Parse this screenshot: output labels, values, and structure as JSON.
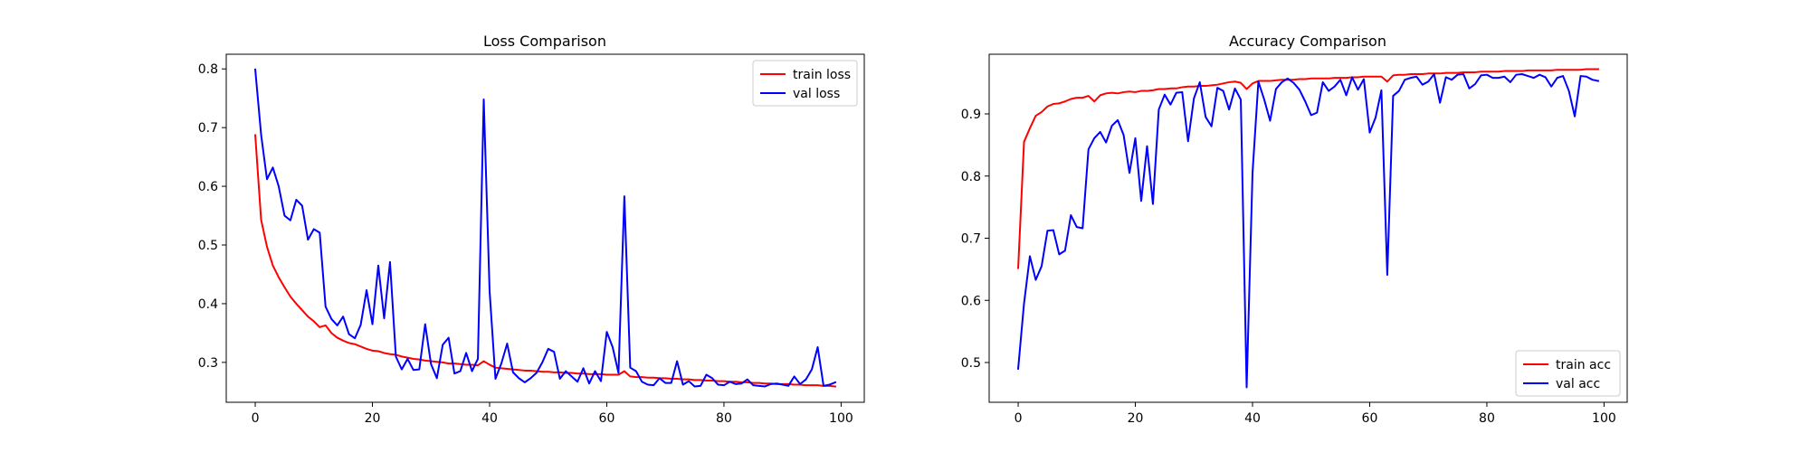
{
  "chart_data": [
    {
      "type": "line",
      "title": "Loss Comparison",
      "xlabel": "",
      "ylabel": "",
      "xlim": [
        -4.95,
        103.95
      ],
      "ylim": [
        0.232,
        0.825
      ],
      "xticks": [
        0,
        20,
        40,
        60,
        80,
        100
      ],
      "yticks": [
        0.3,
        0.4,
        0.5,
        0.6,
        0.7,
        0.8
      ],
      "legend_position": "top-right",
      "series": [
        {
          "name": "train loss",
          "color": "#ff0000",
          "x": [
            0,
            1,
            2,
            3,
            4,
            5,
            6,
            7,
            8,
            9,
            10,
            11,
            12,
            13,
            14,
            15,
            16,
            17,
            18,
            19,
            20,
            21,
            22,
            23,
            24,
            25,
            26,
            27,
            28,
            29,
            30,
            31,
            32,
            33,
            34,
            35,
            36,
            37,
            38,
            39,
            40,
            41,
            42,
            43,
            44,
            45,
            46,
            47,
            48,
            49,
            50,
            51,
            52,
            53,
            54,
            55,
            56,
            57,
            58,
            59,
            60,
            61,
            62,
            63,
            64,
            65,
            66,
            67,
            68,
            69,
            70,
            71,
            72,
            73,
            74,
            75,
            76,
            77,
            78,
            79,
            80,
            81,
            82,
            83,
            84,
            85,
            86,
            87,
            88,
            89,
            90,
            91,
            92,
            93,
            94,
            95,
            96,
            97,
            98,
            99
          ],
          "values": [
            0.687,
            0.543,
            0.497,
            0.465,
            0.445,
            0.428,
            0.412,
            0.4,
            0.389,
            0.378,
            0.37,
            0.36,
            0.363,
            0.35,
            0.342,
            0.337,
            0.333,
            0.331,
            0.327,
            0.323,
            0.32,
            0.319,
            0.316,
            0.314,
            0.313,
            0.31,
            0.308,
            0.306,
            0.305,
            0.303,
            0.302,
            0.301,
            0.3,
            0.298,
            0.298,
            0.297,
            0.296,
            0.296,
            0.295,
            0.302,
            0.296,
            0.291,
            0.29,
            0.289,
            0.288,
            0.287,
            0.286,
            0.286,
            0.285,
            0.284,
            0.284,
            0.283,
            0.283,
            0.282,
            0.282,
            0.281,
            0.281,
            0.28,
            0.28,
            0.28,
            0.279,
            0.279,
            0.279,
            0.285,
            0.276,
            0.275,
            0.275,
            0.274,
            0.274,
            0.273,
            0.273,
            0.272,
            0.272,
            0.271,
            0.271,
            0.27,
            0.27,
            0.269,
            0.269,
            0.268,
            0.268,
            0.267,
            0.267,
            0.266,
            0.266,
            0.265,
            0.265,
            0.264,
            0.264,
            0.263,
            0.263,
            0.263,
            0.262,
            0.262,
            0.261,
            0.261,
            0.261,
            0.26,
            0.26,
            0.259
          ]
        },
        {
          "name": "val loss",
          "color": "#0000ff",
          "x": [
            0,
            1,
            2,
            3,
            4,
            5,
            6,
            7,
            8,
            9,
            10,
            11,
            12,
            13,
            14,
            15,
            16,
            17,
            18,
            19,
            20,
            21,
            22,
            23,
            24,
            25,
            26,
            27,
            28,
            29,
            30,
            31,
            32,
            33,
            34,
            35,
            36,
            37,
            38,
            39,
            40,
            41,
            42,
            43,
            44,
            45,
            46,
            47,
            48,
            49,
            50,
            51,
            52,
            53,
            54,
            55,
            56,
            57,
            58,
            59,
            60,
            61,
            62,
            63,
            64,
            65,
            66,
            67,
            68,
            69,
            70,
            71,
            72,
            73,
            74,
            75,
            76,
            77,
            78,
            79,
            80,
            81,
            82,
            83,
            84,
            85,
            86,
            87,
            88,
            89,
            90,
            91,
            92,
            93,
            94,
            95,
            96,
            97,
            98,
            99
          ],
          "values": [
            0.799,
            0.688,
            0.612,
            0.632,
            0.6,
            0.55,
            0.542,
            0.577,
            0.567,
            0.509,
            0.527,
            0.521,
            0.395,
            0.374,
            0.363,
            0.378,
            0.348,
            0.341,
            0.364,
            0.423,
            0.365,
            0.465,
            0.375,
            0.471,
            0.31,
            0.288,
            0.306,
            0.287,
            0.288,
            0.365,
            0.297,
            0.273,
            0.33,
            0.342,
            0.281,
            0.285,
            0.316,
            0.285,
            0.306,
            0.748,
            0.421,
            0.272,
            0.298,
            0.332,
            0.283,
            0.273,
            0.266,
            0.273,
            0.282,
            0.3,
            0.323,
            0.318,
            0.272,
            0.285,
            0.276,
            0.267,
            0.29,
            0.264,
            0.285,
            0.268,
            0.352,
            0.326,
            0.282,
            0.583,
            0.291,
            0.285,
            0.267,
            0.262,
            0.261,
            0.273,
            0.265,
            0.265,
            0.302,
            0.262,
            0.268,
            0.259,
            0.26,
            0.279,
            0.273,
            0.262,
            0.261,
            0.267,
            0.263,
            0.264,
            0.271,
            0.261,
            0.26,
            0.259,
            0.263,
            0.264,
            0.262,
            0.26,
            0.276,
            0.263,
            0.271,
            0.288,
            0.326,
            0.26,
            0.262,
            0.266
          ]
        }
      ]
    },
    {
      "type": "line",
      "title": "Accuracy Comparison",
      "xlabel": "",
      "ylabel": "",
      "xlim": [
        -4.95,
        103.95
      ],
      "ylim": [
        0.436,
        0.996
      ],
      "xticks": [
        0,
        20,
        40,
        60,
        80,
        100
      ],
      "yticks": [
        0.5,
        0.6,
        0.7,
        0.8,
        0.9
      ],
      "legend_position": "bottom-right",
      "series": [
        {
          "name": "train acc",
          "color": "#ff0000",
          "x": [
            0,
            1,
            2,
            3,
            4,
            5,
            6,
            7,
            8,
            9,
            10,
            11,
            12,
            13,
            14,
            15,
            16,
            17,
            18,
            19,
            20,
            21,
            22,
            23,
            24,
            25,
            26,
            27,
            28,
            29,
            30,
            31,
            32,
            33,
            34,
            35,
            36,
            37,
            38,
            39,
            40,
            41,
            42,
            43,
            44,
            45,
            46,
            47,
            48,
            49,
            50,
            51,
            52,
            53,
            54,
            55,
            56,
            57,
            58,
            59,
            60,
            61,
            62,
            63,
            64,
            65,
            66,
            67,
            68,
            69,
            70,
            71,
            72,
            73,
            74,
            75,
            76,
            77,
            78,
            79,
            80,
            81,
            82,
            83,
            84,
            85,
            86,
            87,
            88,
            89,
            90,
            91,
            92,
            93,
            94,
            95,
            96,
            97,
            98,
            99
          ],
          "values": [
            0.652,
            0.855,
            0.877,
            0.897,
            0.903,
            0.912,
            0.916,
            0.917,
            0.92,
            0.924,
            0.926,
            0.926,
            0.929,
            0.92,
            0.93,
            0.933,
            0.934,
            0.933,
            0.935,
            0.936,
            0.935,
            0.937,
            0.937,
            0.938,
            0.94,
            0.94,
            0.941,
            0.941,
            0.943,
            0.944,
            0.944,
            0.945,
            0.945,
            0.946,
            0.947,
            0.949,
            0.951,
            0.952,
            0.95,
            0.94,
            0.949,
            0.953,
            0.953,
            0.953,
            0.954,
            0.955,
            0.955,
            0.955,
            0.956,
            0.956,
            0.957,
            0.957,
            0.957,
            0.957,
            0.958,
            0.958,
            0.958,
            0.959,
            0.959,
            0.96,
            0.96,
            0.96,
            0.96,
            0.952,
            0.962,
            0.963,
            0.963,
            0.964,
            0.964,
            0.964,
            0.965,
            0.965,
            0.965,
            0.966,
            0.966,
            0.966,
            0.967,
            0.967,
            0.967,
            0.968,
            0.968,
            0.968,
            0.968,
            0.969,
            0.969,
            0.969,
            0.969,
            0.97,
            0.97,
            0.97,
            0.97,
            0.97,
            0.971,
            0.971,
            0.971,
            0.971,
            0.971,
            0.972,
            0.972,
            0.972
          ]
        },
        {
          "name": "val acc",
          "color": "#0000ff",
          "x": [
            0,
            1,
            2,
            3,
            4,
            5,
            6,
            7,
            8,
            9,
            10,
            11,
            12,
            13,
            14,
            15,
            16,
            17,
            18,
            19,
            20,
            21,
            22,
            23,
            24,
            25,
            26,
            27,
            28,
            29,
            30,
            31,
            32,
            33,
            34,
            35,
            36,
            37,
            38,
            39,
            40,
            41,
            42,
            43,
            44,
            45,
            46,
            47,
            48,
            49,
            50,
            51,
            52,
            53,
            54,
            55,
            56,
            57,
            58,
            59,
            60,
            61,
            62,
            63,
            64,
            65,
            66,
            67,
            68,
            69,
            70,
            71,
            72,
            73,
            74,
            75,
            76,
            77,
            78,
            79,
            80,
            81,
            82,
            83,
            84,
            85,
            86,
            87,
            88,
            89,
            90,
            91,
            92,
            93,
            94,
            95,
            96,
            97,
            98,
            99
          ],
          "values": [
            0.49,
            0.595,
            0.671,
            0.633,
            0.655,
            0.712,
            0.713,
            0.674,
            0.68,
            0.737,
            0.718,
            0.716,
            0.843,
            0.861,
            0.871,
            0.854,
            0.881,
            0.89,
            0.866,
            0.805,
            0.861,
            0.76,
            0.848,
            0.755,
            0.907,
            0.931,
            0.915,
            0.934,
            0.935,
            0.856,
            0.925,
            0.951,
            0.895,
            0.88,
            0.942,
            0.937,
            0.907,
            0.941,
            0.923,
            0.46,
            0.805,
            0.952,
            0.923,
            0.889,
            0.94,
            0.951,
            0.957,
            0.95,
            0.939,
            0.92,
            0.898,
            0.902,
            0.951,
            0.937,
            0.944,
            0.955,
            0.93,
            0.959,
            0.939,
            0.956,
            0.87,
            0.894,
            0.938,
            0.641,
            0.929,
            0.937,
            0.955,
            0.958,
            0.96,
            0.947,
            0.952,
            0.964,
            0.918,
            0.959,
            0.955,
            0.963,
            0.964,
            0.941,
            0.948,
            0.962,
            0.963,
            0.958,
            0.958,
            0.96,
            0.951,
            0.963,
            0.964,
            0.961,
            0.958,
            0.963,
            0.959,
            0.944,
            0.958,
            0.961,
            0.937,
            0.896,
            0.961,
            0.96,
            0.955,
            0.953
          ]
        }
      ]
    }
  ]
}
